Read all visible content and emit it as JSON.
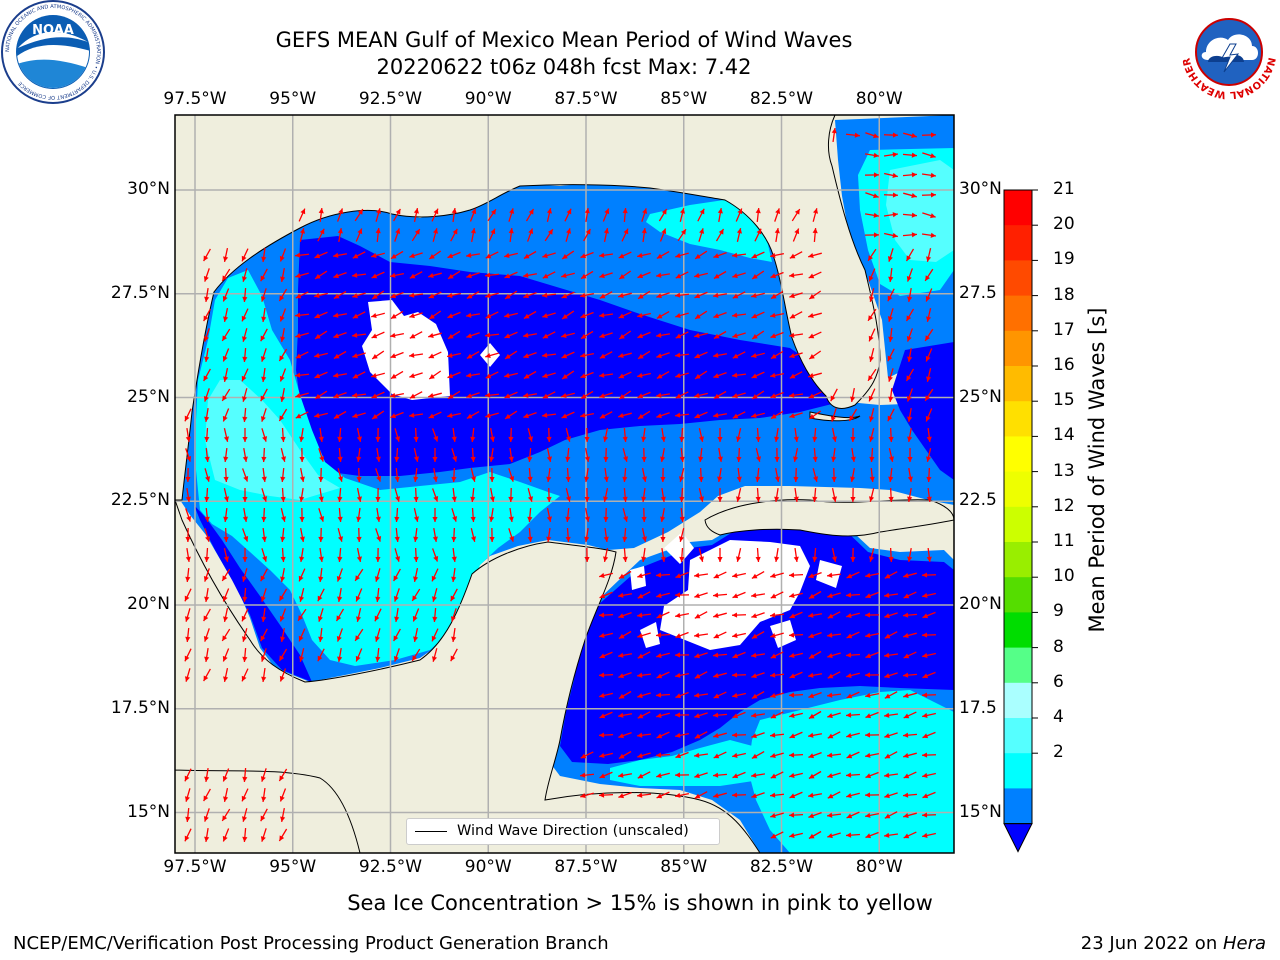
{
  "title_line1": "GEFS MEAN Gulf of Mexico Mean Period of Wind Waves",
  "title_line2": "20220622 t06z 048h fcst   Max: 7.42",
  "axes": {
    "lon_ticks": [
      "97.5°W",
      "95°W",
      "92.5°W",
      "90°W",
      "87.5°W",
      "85°W",
      "82.5°W",
      "80°W"
    ],
    "lat_ticks_left": [
      "30°N",
      "27.5°N",
      "25°N",
      "22.5°N",
      "20°N",
      "17.5°N",
      "15°N"
    ],
    "lat_ticks_right": [
      "30°N",
      "27.5",
      "25°N",
      "22.5",
      "20°N",
      "17.5",
      "15°N"
    ]
  },
  "legend": {
    "label": "Wind Wave Direction (unscaled)"
  },
  "colorbar": {
    "label": "Mean Period of Wind Waves [s]",
    "ticks": [
      "21",
      "20",
      "19",
      "18",
      "17",
      "16",
      "15",
      "14",
      "13",
      "12",
      "11",
      "10",
      "9",
      "8",
      "6",
      "4",
      "2"
    ],
    "colors": [
      "#ff0000",
      "#ff2000",
      "#ff4a00",
      "#ff7000",
      "#ff9500",
      "#ffbb00",
      "#ffe000",
      "#ffff00",
      "#eeff00",
      "#ccff00",
      "#99ee00",
      "#55dd00",
      "#00dd00",
      "#55ff88",
      "#aaffff",
      "#55ffff",
      "#00ffff",
      "#0080ff"
    ],
    "extend_color": "#0000ff"
  },
  "map_colors": {
    "land": "#efeedd",
    "ocean_lt2": "#0000ff",
    "ocean_2_4": "#0080ff",
    "ocean_4_6": "#00ffff",
    "ocean_6_8": "#55ffff",
    "arrows": "#ff0000"
  },
  "notes": {
    "sea_ice": "Sea Ice Concentration > 15% is shown in pink to yellow",
    "left": "NCEP/EMC/Verification Post Processing Product Generation Branch",
    "right_date": "23 Jun 2022 on ",
    "right_host": "Hera"
  },
  "logos": {
    "noaa_label": "NOAA",
    "noaa_ring": "NATIONAL OCEANIC AND ATMOSPHERIC ADMINISTRATION • U.S. DEPARTMENT OF COMMERCE",
    "nws_ring": "NATIONAL WEATHER SERVICE"
  }
}
